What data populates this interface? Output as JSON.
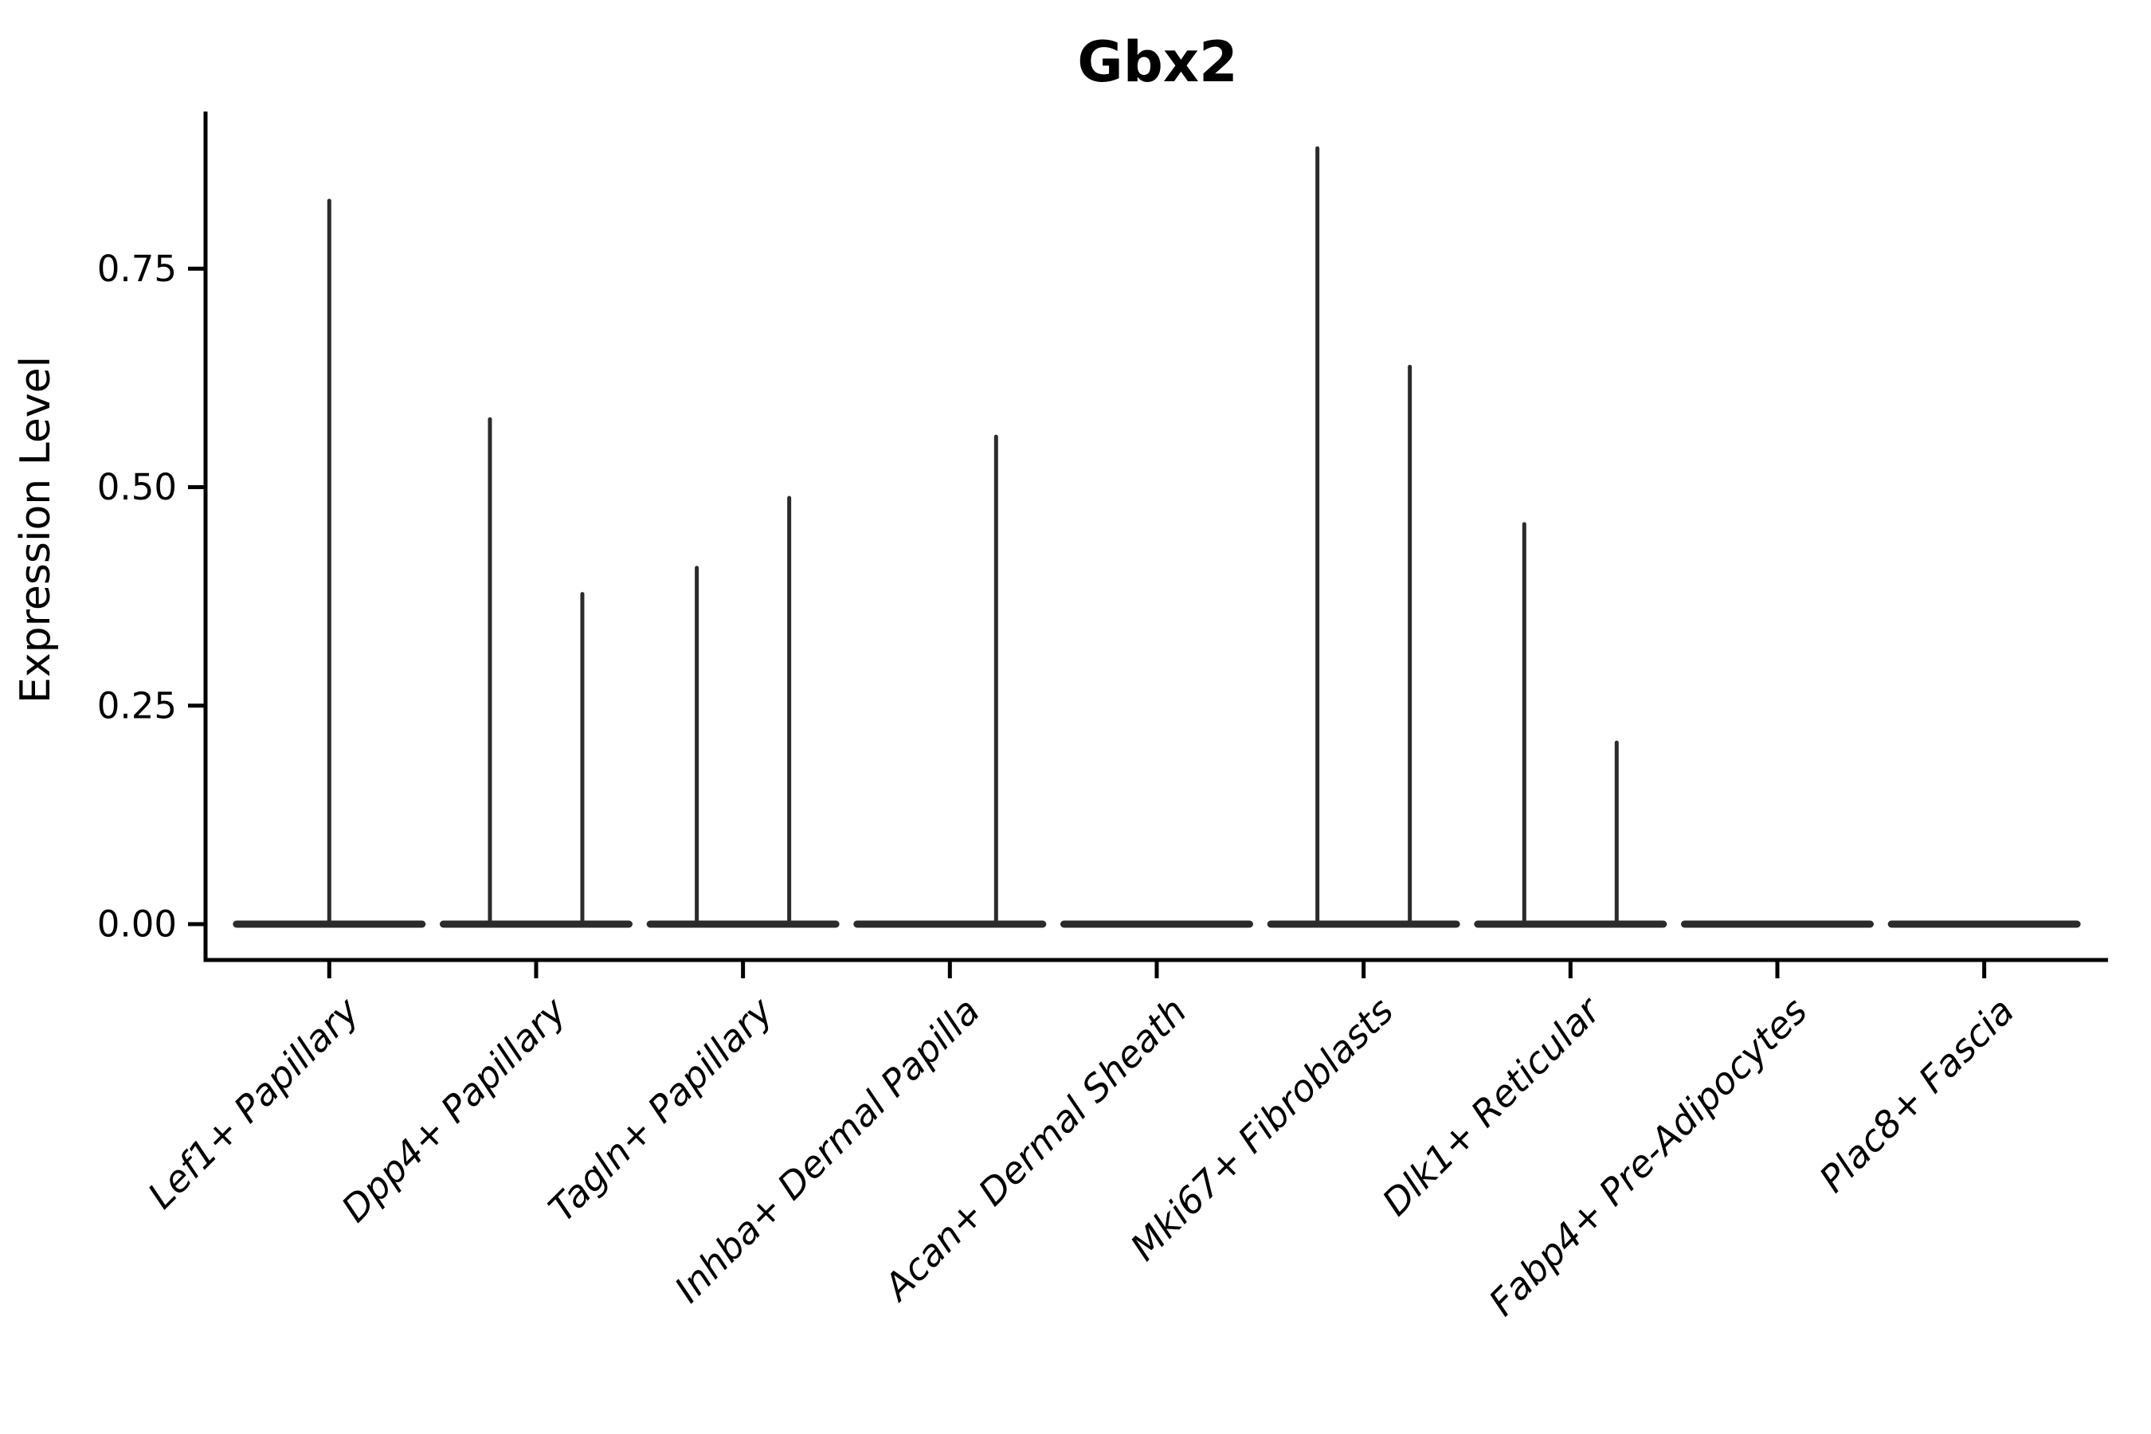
{
  "chart_data": {
    "type": "violin",
    "title": "Gbx2",
    "ylabel": "Expression Level",
    "xlabel": "",
    "ylim": [
      0,
      0.93
    ],
    "yticks": [
      0,
      0.25,
      0.5,
      0.75
    ],
    "ytick_labels": [
      "0.00",
      "0.25",
      "0.50",
      "0.75"
    ],
    "grid": false,
    "legend": false,
    "violin_color": "#2b2b2b",
    "axis_color": "#000000",
    "baseline_value": 0,
    "note": "Each cell type has a dense flat violin mass at expression 0; thin vertical spikes reach the maximum expression of rare Gbx2-positive cells.",
    "categories": [
      {
        "label": "Lef1+ Papillary",
        "spikes": [
          {
            "position": "center",
            "value": 0.83
          }
        ]
      },
      {
        "label": "Dpp4+ Papillary",
        "spikes": [
          {
            "position": "left",
            "value": 0.58
          },
          {
            "position": "right",
            "value": 0.38
          }
        ]
      },
      {
        "label": "Tagln+ Papillary",
        "spikes": [
          {
            "position": "left",
            "value": 0.41
          },
          {
            "position": "right",
            "value": 0.49
          }
        ]
      },
      {
        "label": "Inhba+ Dermal Papilla",
        "spikes": [
          {
            "position": "right",
            "value": 0.56
          }
        ]
      },
      {
        "label": "Acan+ Dermal Sheath",
        "spikes": []
      },
      {
        "label": "Mki67+ Fibroblasts",
        "spikes": [
          {
            "position": "left",
            "value": 0.89
          },
          {
            "position": "right",
            "value": 0.64
          }
        ]
      },
      {
        "label": "Dlk1+ Reticular",
        "spikes": [
          {
            "position": "left",
            "value": 0.46
          },
          {
            "position": "right",
            "value": 0.21
          }
        ]
      },
      {
        "label": "Fabp4+ Pre-Adipocytes",
        "spikes": []
      },
      {
        "label": "Plac8+ Fascia",
        "spikes": []
      }
    ]
  }
}
